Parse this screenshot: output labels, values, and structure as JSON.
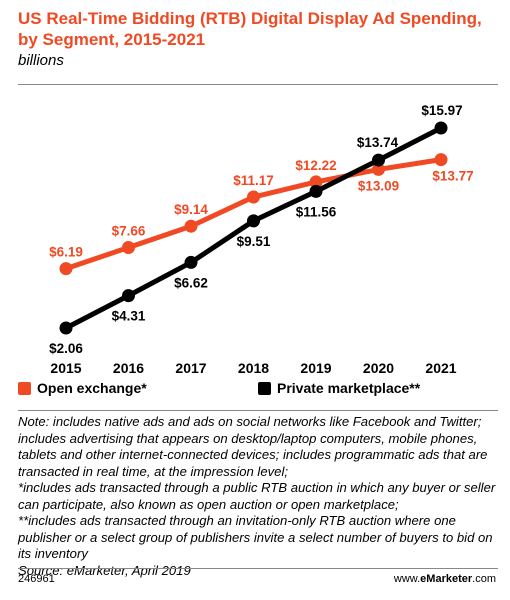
{
  "header": {
    "title": "US Real-Time Bidding (RTB) Digital Display Ad Spending, by Segment, 2015-2021",
    "subtitle": "billions"
  },
  "colors": {
    "accent": "#f04a24",
    "black": "#000000",
    "gray": "#888888"
  },
  "chart_data": {
    "type": "line",
    "title": "US Real-Time Bidding (RTB) Digital Display Ad Spending, by Segment, 2015-2021",
    "subtitle": "billions",
    "categories": [
      "2015",
      "2016",
      "2017",
      "2018",
      "2019",
      "2020",
      "2021"
    ],
    "series": [
      {
        "name": "Open exchange*",
        "color": "#f04a24",
        "values": [
          6.19,
          7.66,
          9.14,
          11.17,
          12.22,
          13.09,
          13.77
        ],
        "labels": [
          "$6.19",
          "$7.66",
          "$9.14",
          "$11.17",
          "$12.22",
          "$13.09",
          "$13.77"
        ]
      },
      {
        "name": "Private marketplace**",
        "color": "#000000",
        "values": [
          2.06,
          4.31,
          6.62,
          9.51,
          11.56,
          13.74,
          15.97
        ],
        "labels": [
          "$2.06",
          "$4.31",
          "$6.62",
          "$9.51",
          "$11.56",
          "$13.74",
          "$15.97"
        ]
      }
    ],
    "ylim": [
      0,
      17
    ],
    "grid": false,
    "legend": "bottom"
  },
  "notes": {
    "line1": "Note: includes native ads and ads on social networks like Facebook and Twitter; includes advertising that appears on desktop/laptop computers, mobile phones, tablets and other internet-connected devices; includes programmatic ads that are transacted in real time, at the impression level;",
    "line2": "*includes ads transacted through a public RTB auction in which any buyer or seller can participate, also known as open auction or open marketplace;",
    "line3": "**includes ads transacted through an invitation-only RTB auction where one publisher or a select group of publishers invite a select number of buyers to bid on its inventory",
    "source": "Source: eMarketer, April 2019"
  },
  "footer": {
    "id": "246961",
    "site_prefix": "www.",
    "site_brand": "eMarketer",
    "site_suffix": ".com"
  }
}
